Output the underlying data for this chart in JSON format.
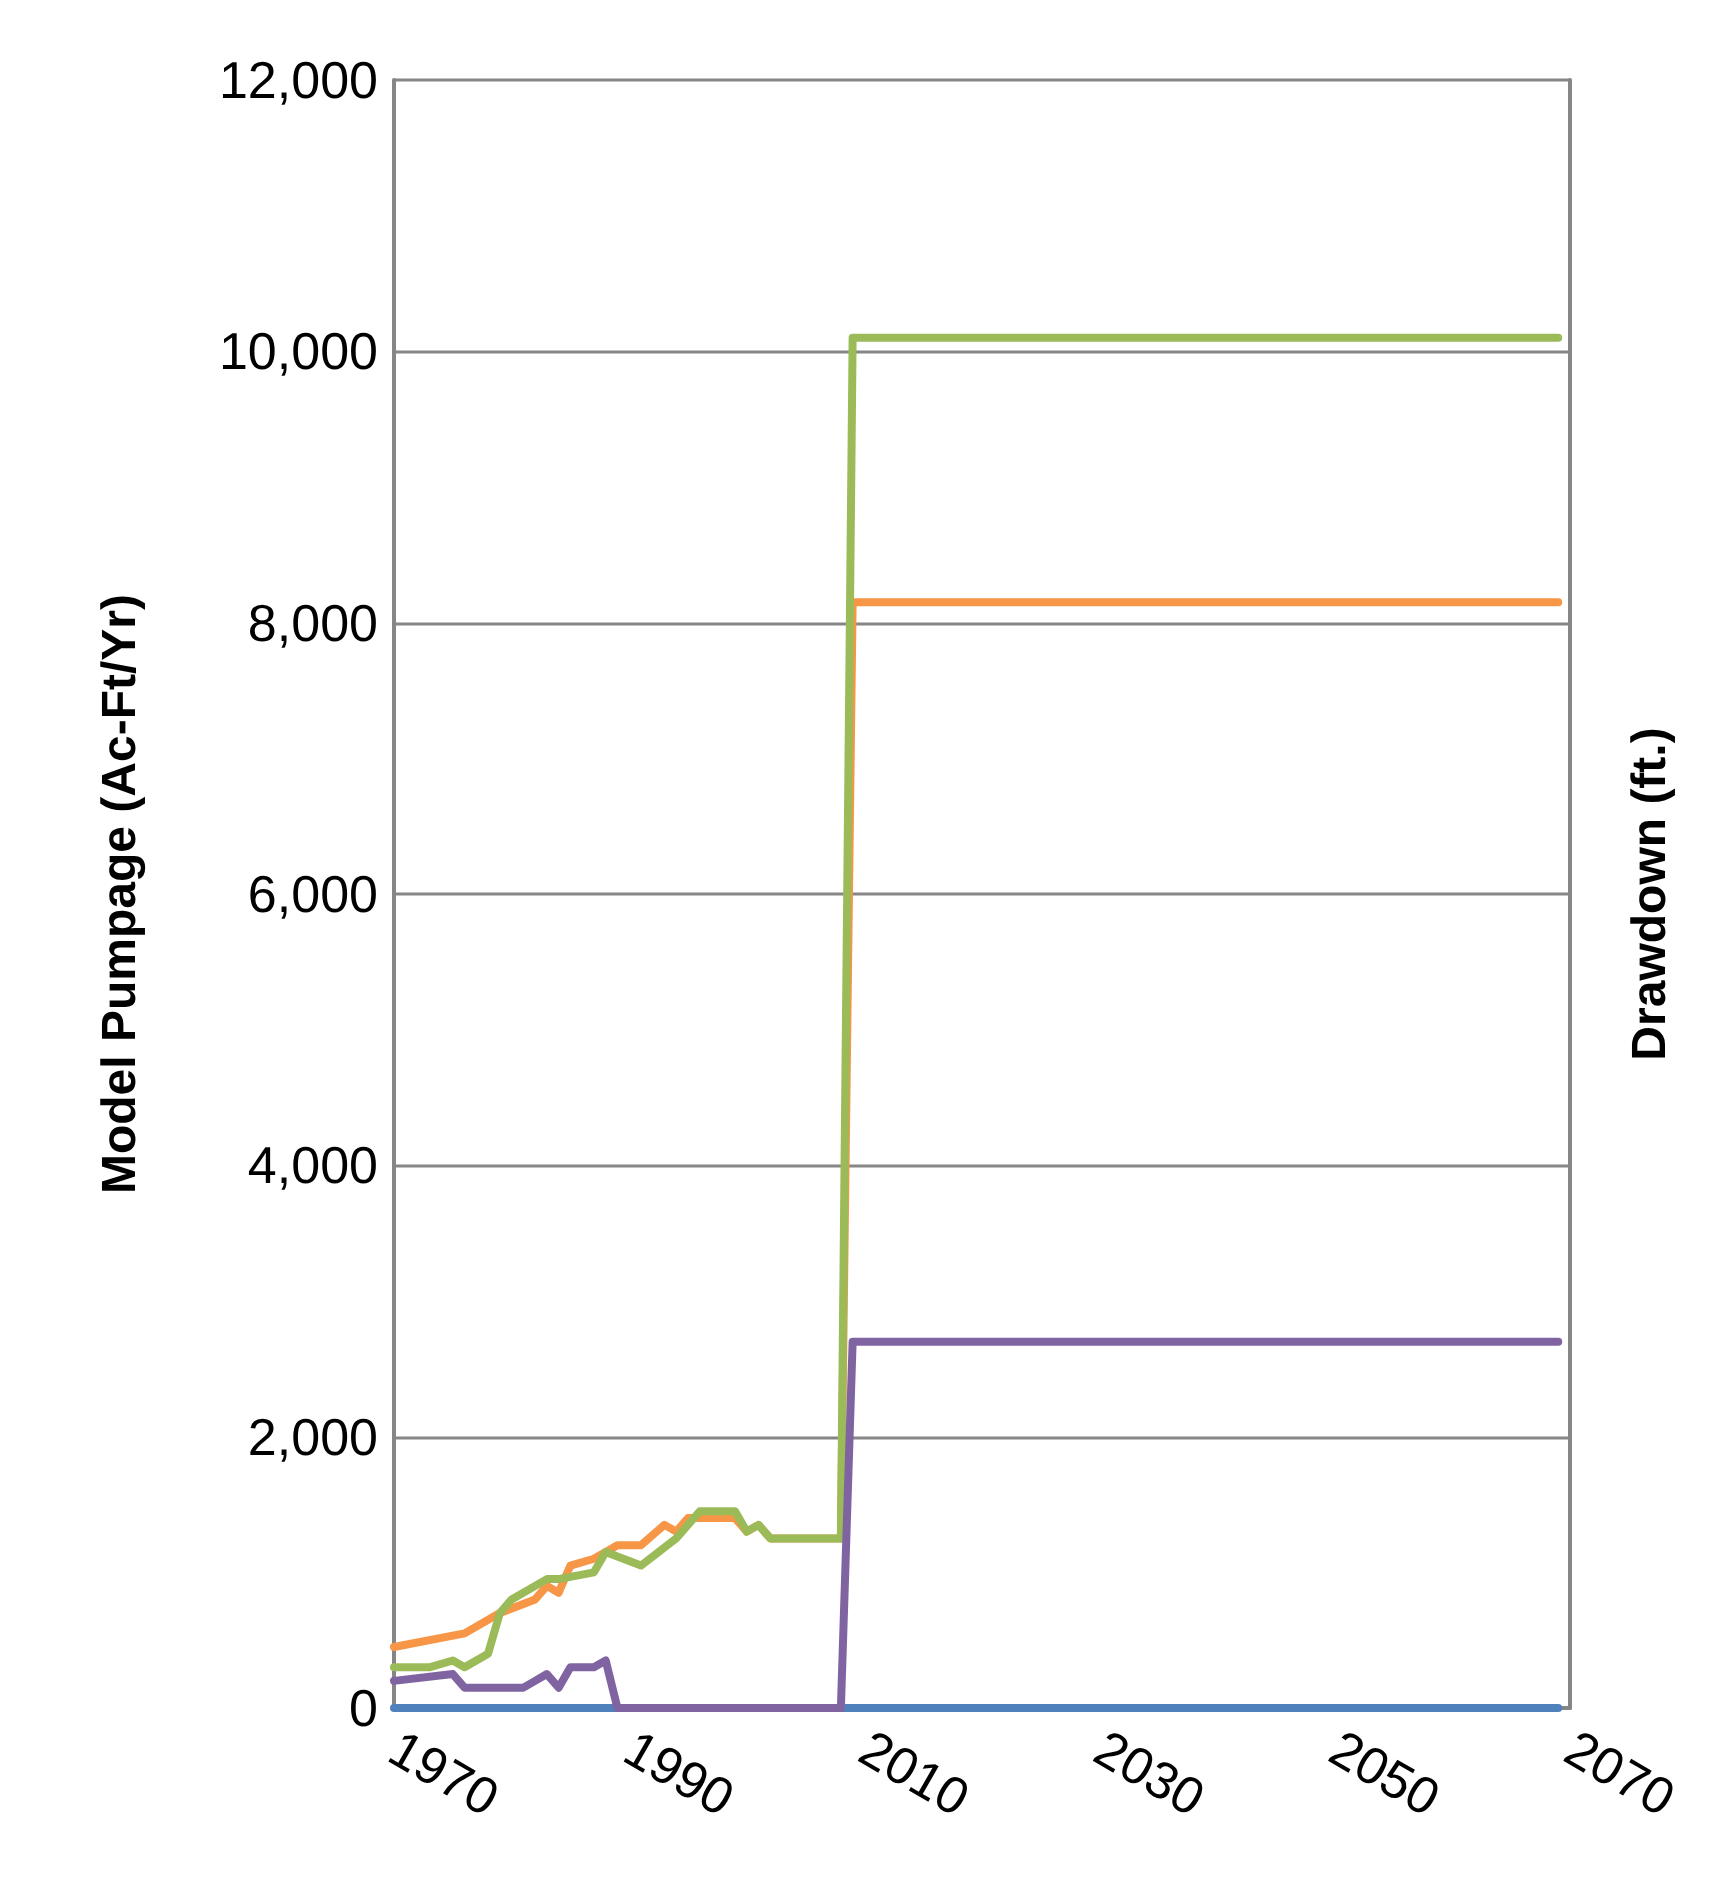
{
  "chart_data": {
    "type": "line",
    "ylabel": "Model Pumpage (Ac-Ft/Yr)",
    "y2label": "Drawdown (ft.)",
    "xlim": [
      1970,
      2070
    ],
    "xticks": [
      1970,
      1990,
      2010,
      2030,
      2050,
      2070
    ],
    "ylim": [
      0,
      12000
    ],
    "yticks": [
      {
        "value": 0,
        "label": "0"
      },
      {
        "value": 2000,
        "label": "2,000"
      },
      {
        "value": 4000,
        "label": "4,000"
      },
      {
        "value": 6000,
        "label": "6,000"
      },
      {
        "value": 8000,
        "label": "8,000"
      },
      {
        "value": 10000,
        "label": "10,000"
      },
      {
        "value": 12000,
        "label": "12,000"
      }
    ],
    "grid": "y",
    "marker": "none",
    "line_style": "solid",
    "series": [
      {
        "color": "#4f81bd",
        "x": [
          1970,
          2069
        ],
        "values": [
          0,
          0
        ]
      },
      {
        "color": "#f79646",
        "x": [
          1970,
          1976,
          1979,
          1982,
          1983,
          1984,
          1985,
          1987,
          1989,
          1991,
          1993,
          1994,
          1995,
          1999,
          2000,
          2001,
          2002,
          2008,
          2009,
          2069
        ],
        "values": [
          450,
          550,
          700,
          800,
          900,
          850,
          1050,
          1100,
          1200,
          1200,
          1350,
          1300,
          1400,
          1400,
          1300,
          1350,
          1250,
          1250,
          8150,
          8150
        ]
      },
      {
        "color": "#9bbb59",
        "x": [
          1970,
          1973,
          1975,
          1976,
          1978,
          1979,
          1980,
          1983,
          1984,
          1987,
          1988,
          1991,
          1994,
          1996,
          1999,
          2000,
          2001,
          2002,
          2008,
          2009,
          2069
        ],
        "values": [
          300,
          300,
          350,
          300,
          400,
          700,
          800,
          950,
          950,
          1000,
          1150,
          1050,
          1250,
          1450,
          1450,
          1300,
          1350,
          1250,
          1250,
          10100,
          10100
        ]
      },
      {
        "color": "#8064a2",
        "x": [
          1970,
          1975,
          1976,
          1981,
          1982,
          1983,
          1984,
          1985,
          1987,
          1988,
          1989,
          2008,
          2009,
          2069
        ],
        "values": [
          200,
          250,
          150,
          150,
          200,
          250,
          150,
          300,
          300,
          350,
          0,
          0,
          2700,
          2700
        ]
      }
    ]
  }
}
